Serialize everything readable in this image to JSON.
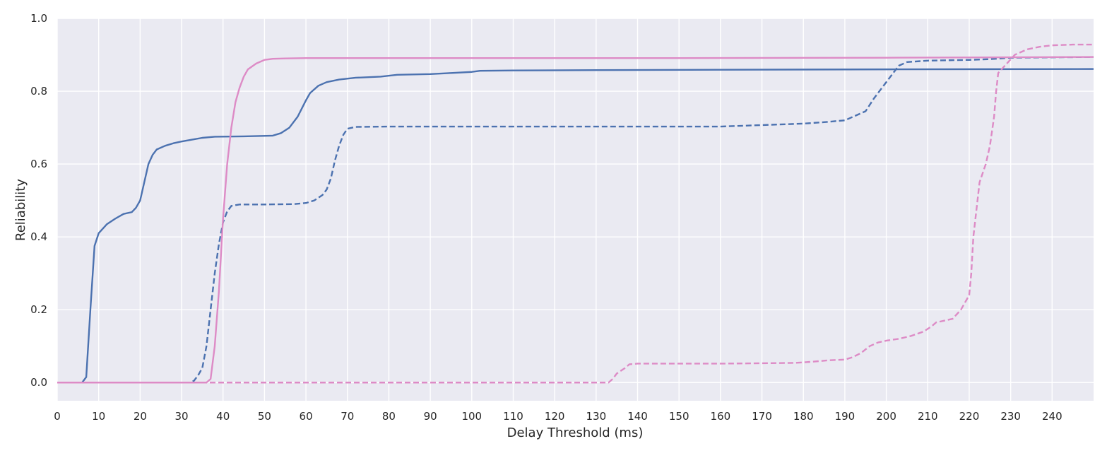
{
  "chart_data": {
    "type": "line",
    "title": "",
    "xlabel": "Delay Threshold (ms)",
    "ylabel": "Reliability",
    "xlim": [
      0,
      250
    ],
    "ylim": [
      -0.05,
      1.0
    ],
    "xticks": [
      0,
      10,
      20,
      30,
      40,
      50,
      60,
      70,
      80,
      90,
      100,
      110,
      120,
      130,
      140,
      150,
      160,
      170,
      180,
      190,
      200,
      210,
      220,
      230,
      240
    ],
    "xtick_labels": [
      "0",
      "10",
      "20",
      "30",
      "40",
      "50",
      "60",
      "70",
      "80",
      "90",
      "100",
      "110",
      "120",
      "130",
      "140",
      "150",
      "160",
      "170",
      "180",
      "190",
      "200",
      "210",
      "220",
      "230",
      "240"
    ],
    "yticks": [
      0.0,
      0.2,
      0.4,
      0.6,
      0.8,
      1.0
    ],
    "ytick_labels": [
      "0.0",
      "0.2",
      "0.4",
      "0.6",
      "0.8",
      "1.0"
    ],
    "grid": true,
    "background": "#eaeaf2",
    "legend": "none",
    "series": [
      {
        "color": "#4c72b0",
        "style": "solid",
        "points": [
          [
            0,
            0
          ],
          [
            6,
            0
          ],
          [
            7,
            0.015
          ],
          [
            8,
            0.2
          ],
          [
            9,
            0.375
          ],
          [
            10,
            0.41
          ],
          [
            12,
            0.435
          ],
          [
            14,
            0.45
          ],
          [
            16,
            0.463
          ],
          [
            18,
            0.468
          ],
          [
            19,
            0.48
          ],
          [
            20,
            0.5
          ],
          [
            21,
            0.55
          ],
          [
            22,
            0.6
          ],
          [
            23,
            0.625
          ],
          [
            24,
            0.64
          ],
          [
            26,
            0.65
          ],
          [
            28,
            0.657
          ],
          [
            30,
            0.662
          ],
          [
            33,
            0.668
          ],
          [
            35,
            0.672
          ],
          [
            38,
            0.675
          ],
          [
            45,
            0.676
          ],
          [
            52,
            0.678
          ],
          [
            54,
            0.685
          ],
          [
            56,
            0.7
          ],
          [
            58,
            0.73
          ],
          [
            60,
            0.775
          ],
          [
            61,
            0.795
          ],
          [
            63,
            0.815
          ],
          [
            65,
            0.825
          ],
          [
            68,
            0.832
          ],
          [
            72,
            0.837
          ],
          [
            78,
            0.84
          ],
          [
            82,
            0.845
          ],
          [
            90,
            0.847
          ],
          [
            95,
            0.85
          ],
          [
            100,
            0.853
          ],
          [
            102,
            0.856
          ],
          [
            110,
            0.857
          ],
          [
            130,
            0.858
          ],
          [
            160,
            0.859
          ],
          [
            200,
            0.86
          ],
          [
            250,
            0.861
          ]
        ]
      },
      {
        "color": "#4c72b0",
        "style": "dashed",
        "points": [
          [
            0,
            0
          ],
          [
            32,
            0
          ],
          [
            33,
            0.005
          ],
          [
            34,
            0.02
          ],
          [
            35,
            0.04
          ],
          [
            36,
            0.1
          ],
          [
            37,
            0.2
          ],
          [
            38,
            0.3
          ],
          [
            39,
            0.38
          ],
          [
            40,
            0.44
          ],
          [
            41,
            0.47
          ],
          [
            42,
            0.485
          ],
          [
            44,
            0.489
          ],
          [
            50,
            0.489
          ],
          [
            57,
            0.49
          ],
          [
            60,
            0.493
          ],
          [
            62,
            0.5
          ],
          [
            64,
            0.515
          ],
          [
            65,
            0.53
          ],
          [
            66,
            0.56
          ],
          [
            67,
            0.61
          ],
          [
            68,
            0.65
          ],
          [
            69,
            0.68
          ],
          [
            70,
            0.697
          ],
          [
            72,
            0.702
          ],
          [
            80,
            0.703
          ],
          [
            100,
            0.703
          ],
          [
            150,
            0.703
          ],
          [
            160,
            0.703
          ],
          [
            170,
            0.707
          ],
          [
            180,
            0.711
          ],
          [
            185,
            0.715
          ],
          [
            190,
            0.72
          ],
          [
            195,
            0.745
          ],
          [
            197,
            0.78
          ],
          [
            199,
            0.81
          ],
          [
            201,
            0.84
          ],
          [
            203,
            0.87
          ],
          [
            205,
            0.88
          ],
          [
            210,
            0.884
          ],
          [
            220,
            0.886
          ],
          [
            225,
            0.888
          ],
          [
            230,
            0.892
          ],
          [
            240,
            0.893
          ],
          [
            250,
            0.894
          ]
        ]
      },
      {
        "color": "#dd8bc6",
        "style": "solid",
        "points": [
          [
            0,
            0
          ],
          [
            36,
            0
          ],
          [
            37,
            0.01
          ],
          [
            38,
            0.1
          ],
          [
            39,
            0.25
          ],
          [
            40,
            0.45
          ],
          [
            41,
            0.6
          ],
          [
            42,
            0.7
          ],
          [
            43,
            0.77
          ],
          [
            44,
            0.81
          ],
          [
            45,
            0.84
          ],
          [
            46,
            0.86
          ],
          [
            48,
            0.876
          ],
          [
            50,
            0.886
          ],
          [
            52,
            0.889
          ],
          [
            55,
            0.89
          ],
          [
            60,
            0.891
          ],
          [
            100,
            0.891
          ],
          [
            150,
            0.891
          ],
          [
            200,
            0.892
          ],
          [
            250,
            0.894
          ]
        ]
      },
      {
        "color": "#dd8bc6",
        "style": "dashed",
        "points": [
          [
            0,
            0
          ],
          [
            133,
            0
          ],
          [
            134,
            0.01
          ],
          [
            135,
            0.025
          ],
          [
            137,
            0.04
          ],
          [
            138,
            0.05
          ],
          [
            140,
            0.052
          ],
          [
            150,
            0.052
          ],
          [
            160,
            0.052
          ],
          [
            170,
            0.053
          ],
          [
            178,
            0.054
          ],
          [
            182,
            0.057
          ],
          [
            186,
            0.061
          ],
          [
            190,
            0.063
          ],
          [
            192,
            0.07
          ],
          [
            194,
            0.082
          ],
          [
            196,
            0.1
          ],
          [
            198,
            0.11
          ],
          [
            200,
            0.115
          ],
          [
            203,
            0.12
          ],
          [
            206,
            0.128
          ],
          [
            209,
            0.14
          ],
          [
            211,
            0.155
          ],
          [
            212,
            0.165
          ],
          [
            214,
            0.17
          ],
          [
            216,
            0.175
          ],
          [
            218,
            0.2
          ],
          [
            220,
            0.24
          ],
          [
            220.5,
            0.3
          ],
          [
            221,
            0.4
          ],
          [
            222,
            0.5
          ],
          [
            222.5,
            0.55
          ],
          [
            224,
            0.6
          ],
          [
            225,
            0.65
          ],
          [
            226,
            0.73
          ],
          [
            226.5,
            0.8
          ],
          [
            227,
            0.85
          ],
          [
            229,
            0.875
          ],
          [
            231,
            0.9
          ],
          [
            234,
            0.915
          ],
          [
            237,
            0.922
          ],
          [
            240,
            0.926
          ],
          [
            245,
            0.928
          ],
          [
            250,
            0.928
          ]
        ]
      }
    ]
  }
}
